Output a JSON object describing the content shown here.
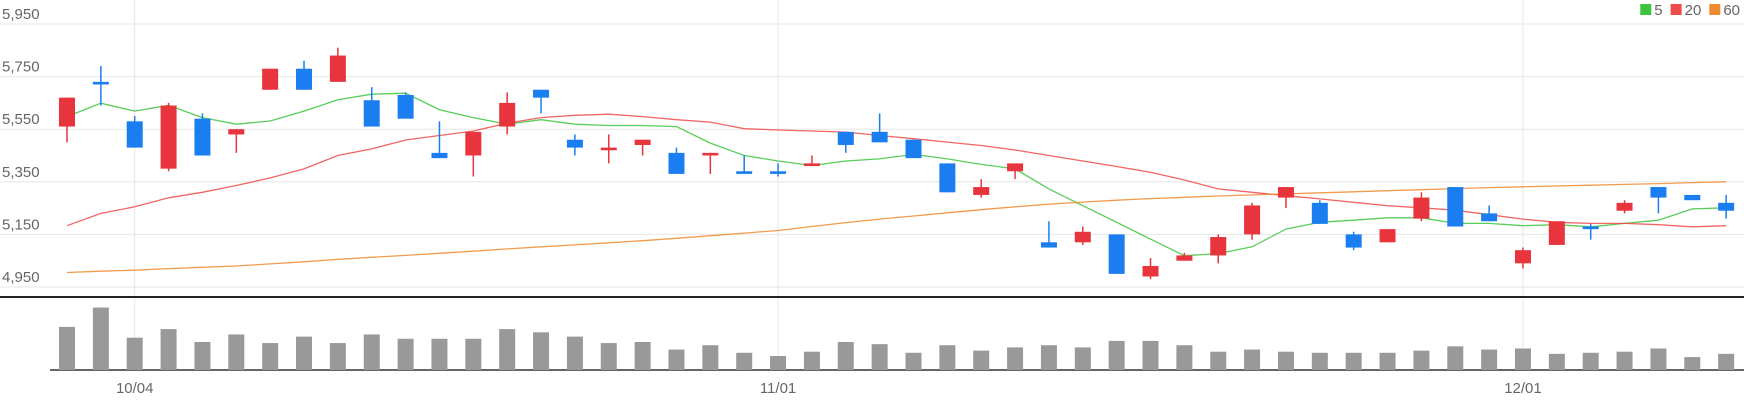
{
  "chart_data": [
    {
      "type": "candlestick",
      "categories": [
        null,
        null,
        "10/04",
        null,
        null,
        null,
        null,
        null,
        null,
        null,
        null,
        null,
        null,
        null,
        null,
        null,
        null,
        null,
        null,
        null,
        null,
        "11/01",
        null,
        null,
        null,
        null,
        null,
        null,
        null,
        null,
        null,
        null,
        null,
        null,
        null,
        null,
        null,
        null,
        null,
        null,
        null,
        null,
        null,
        "12/01",
        null,
        null,
        null,
        null,
        null,
        null
      ],
      "open": [
        5560,
        5730,
        5580,
        5400,
        5590,
        5530,
        5700,
        5780,
        5730,
        5660,
        5680,
        5460,
        5450,
        5560,
        5700,
        5510,
        5470,
        5490,
        5460,
        5450,
        5390,
        5390,
        5410,
        5540,
        5540,
        5510,
        5420,
        5300,
        5390,
        5120,
        5120,
        5150,
        4990,
        5050,
        5070,
        5150,
        5290,
        5270,
        5150,
        5120,
        5210,
        5330,
        5230,
        5040,
        5110,
        5180,
        5240,
        5330,
        5300,
        5270
      ],
      "high": [
        5670,
        5790,
        5600,
        5650,
        5610,
        5550,
        5780,
        5810,
        5860,
        5710,
        5690,
        5580,
        5540,
        5690,
        5700,
        5530,
        5530,
        5510,
        5480,
        5460,
        5450,
        5420,
        5450,
        5540,
        5610,
        5510,
        5420,
        5360,
        5420,
        5200,
        5180,
        5150,
        5060,
        5080,
        5150,
        5270,
        5330,
        5280,
        5160,
        5170,
        5310,
        5330,
        5260,
        5100,
        5200,
        5190,
        5280,
        5330,
        5300,
        5300
      ],
      "low": [
        5500,
        5640,
        5480,
        5390,
        5450,
        5460,
        5700,
        5700,
        5730,
        5560,
        5590,
        5440,
        5370,
        5530,
        5610,
        5450,
        5420,
        5450,
        5380,
        5380,
        5380,
        5370,
        5410,
        5460,
        5500,
        5440,
        5310,
        5290,
        5360,
        5100,
        5110,
        5000,
        4980,
        5050,
        5040,
        5130,
        5250,
        5190,
        5090,
        5120,
        5200,
        5180,
        5200,
        5020,
        5110,
        5130,
        5230,
        5230,
        5280,
        5210
      ],
      "close": [
        5670,
        5720,
        5480,
        5640,
        5450,
        5550,
        5780,
        5700,
        5830,
        5560,
        5590,
        5440,
        5540,
        5650,
        5670,
        5480,
        5480,
        5510,
        5380,
        5460,
        5380,
        5380,
        5420,
        5490,
        5500,
        5440,
        5310,
        5330,
        5420,
        5100,
        5160,
        5000,
        5030,
        5070,
        5140,
        5260,
        5330,
        5190,
        5100,
        5170,
        5290,
        5180,
        5200,
        5090,
        5200,
        5170,
        5270,
        5290,
        5280,
        5240
      ],
      "up_color": "#e8343c",
      "down_color": "#1a7ef0",
      "series": [
        {
          "name": "5",
          "color": "#3cc43c",
          "values": [
            5598,
            5649,
            5619,
            5641,
            5594,
            5569,
            5581,
            5619,
            5662,
            5683,
            5687,
            5624,
            5594,
            5569,
            5586,
            5569,
            5564,
            5564,
            5560,
            5497,
            5450,
            5429,
            5412,
            5429,
            5437,
            5454,
            5437,
            5416,
            5399,
            5323,
            5259,
            5196,
            5132,
            5069,
            5077,
            5103,
            5170,
            5196,
            5204,
            5213,
            5213,
            5192,
            5192,
            5183,
            5187,
            5179,
            5192,
            5204,
            5247,
            5251
          ]
        },
        {
          "name": "20",
          "color": "#ee4a4a",
          "values": [
            5183,
            5230,
            5255,
            5289,
            5310,
            5336,
            5365,
            5399,
            5450,
            5475,
            5509,
            5526,
            5543,
            5573,
            5594,
            5603,
            5607,
            5598,
            5586,
            5577,
            5552,
            5547,
            5543,
            5539,
            5526,
            5514,
            5501,
            5488,
            5471,
            5450,
            5429,
            5408,
            5386,
            5357,
            5323,
            5310,
            5297,
            5285,
            5272,
            5259,
            5251,
            5242,
            5225,
            5208,
            5196,
            5192,
            5192,
            5187,
            5179,
            5183
          ]
        },
        {
          "name": "60",
          "color": "#f08a2e",
          "values": [
            5005,
            5010,
            5014,
            5020,
            5025,
            5030,
            5038,
            5046,
            5055,
            5063,
            5070,
            5078,
            5086,
            5095,
            5103,
            5110,
            5118,
            5126,
            5135,
            5145,
            5155,
            5165,
            5180,
            5195,
            5208,
            5220,
            5232,
            5244,
            5255,
            5265,
            5273,
            5280,
            5286,
            5291,
            5296,
            5300,
            5304,
            5308,
            5312,
            5316,
            5320,
            5324,
            5328,
            5331,
            5334,
            5337,
            5340,
            5343,
            5347,
            5350
          ]
        }
      ],
      "ylim": [
        4950,
        5950
      ],
      "yticks": [
        {
          "value": 4950,
          "label": "4,950"
        },
        {
          "value": 5150,
          "label": "5,150"
        },
        {
          "value": 5350,
          "label": "5,350"
        },
        {
          "value": 5550,
          "label": "5,550"
        },
        {
          "value": 5750,
          "label": "5,750"
        },
        {
          "value": 5950,
          "label": "5,950"
        }
      ],
      "grid": true,
      "legend": "top-right"
    },
    {
      "type": "bar",
      "color": "#999999",
      "values": [
        40,
        58,
        30,
        38,
        26,
        33,
        25,
        31,
        25,
        33,
        29,
        29,
        29,
        38,
        35,
        31,
        25,
        26,
        19,
        23,
        16,
        13,
        17,
        26,
        24,
        16,
        23,
        18,
        21,
        23,
        21,
        27,
        27,
        23,
        17,
        19,
        17,
        16,
        16,
        16,
        18,
        22,
        19,
        20,
        15,
        16,
        17,
        20,
        12,
        15
      ],
      "ylim": [
        0,
        65
      ]
    }
  ]
}
